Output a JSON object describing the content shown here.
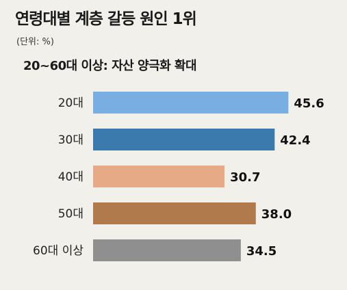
{
  "chart_data": {
    "type": "bar",
    "orientation": "horizontal",
    "title": "연령대별 계층 갈등 원인 1위",
    "unit_note": "(단위: %)",
    "subtitle": "20~60대 이상: 자산 양극화 확대",
    "categories": [
      "20대",
      "30대",
      "40대",
      "50대",
      "60대 이상"
    ],
    "values": [
      45.6,
      42.4,
      30.7,
      38.0,
      34.5
    ],
    "value_labels": [
      "45.6",
      "42.4",
      "30.7",
      "38.0",
      "34.5"
    ],
    "colors": [
      "#78aee2",
      "#3a7aad",
      "#e7aa86",
      "#b07a4c",
      "#8f8f8f"
    ],
    "xlim": [
      0,
      50
    ],
    "grid": false,
    "legend": "none"
  }
}
